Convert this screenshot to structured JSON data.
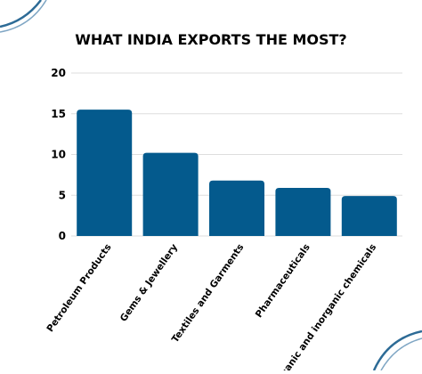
{
  "chart_data": {
    "type": "bar",
    "title": "WHAT INDIA EXPORTS THE MOST?",
    "xlabel": "",
    "ylabel": "",
    "categories": [
      "Petroleum Products",
      "Gems & Jewellery",
      "Textiles and Garments",
      "Pharmaceuticals",
      "Organic and inorganic chemicals"
    ],
    "values": [
      15.5,
      10.2,
      6.8,
      5.9,
      4.9
    ],
    "ylim": [
      0,
      20
    ],
    "yticks": [
      "0",
      "5",
      "10",
      "15",
      "20"
    ],
    "grid": true,
    "legend": "none"
  },
  "colors": {
    "bar": "#045a8d",
    "grid": "#dddddd",
    "decor": "#2d6b96"
  }
}
